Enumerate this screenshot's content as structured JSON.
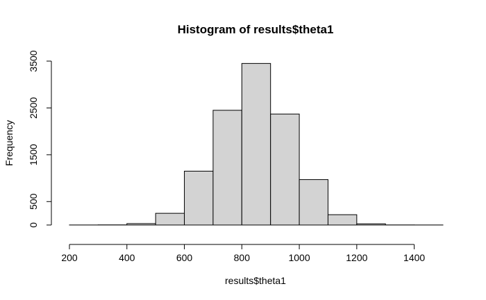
{
  "chart_data": {
    "type": "bar",
    "title": "Histogram of results$theta1",
    "xlabel": "results$theta1",
    "ylabel": "Frequency",
    "bin_edges": [
      200,
      300,
      400,
      500,
      600,
      700,
      800,
      900,
      1000,
      1100,
      1200,
      1300,
      1400,
      1500
    ],
    "values": [
      1,
      3,
      30,
      250,
      1150,
      2450,
      3450,
      2370,
      970,
      220,
      25,
      2,
      1
    ],
    "xlim": [
      200,
      1500
    ],
    "ylim": [
      0,
      3500
    ],
    "x_ticks": [
      200,
      400,
      600,
      800,
      1000,
      1200,
      1400
    ],
    "x_tick_labels": [
      "200",
      "400",
      "600",
      "800",
      "1000",
      "1200",
      "1400"
    ],
    "y_ticks": [
      0,
      500,
      1500,
      2500,
      3500
    ],
    "y_tick_labels": [
      "0",
      "500",
      "1500",
      "2500",
      "3500"
    ],
    "bar_fill": "#d3d3d3",
    "bar_stroke": "#000000",
    "grid": false
  }
}
